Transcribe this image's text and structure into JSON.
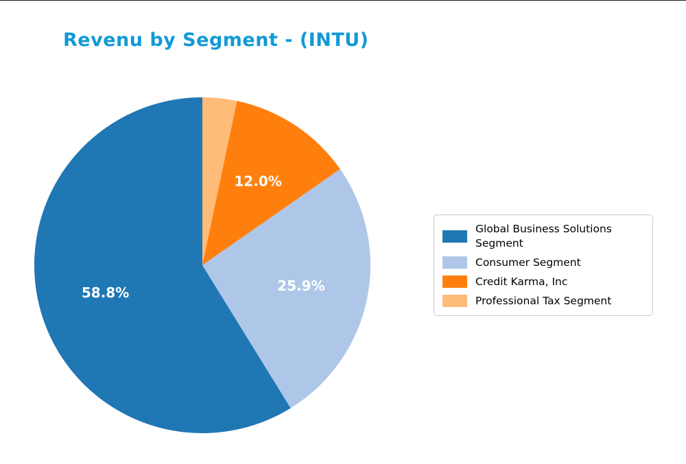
{
  "title_color": "#1199d6",
  "chart_data": {
    "type": "pie",
    "title": "Revenu by Segment - (INTU)",
    "start_angle_deg": 90,
    "direction": "counterclockwise",
    "legend_position": "right",
    "label_radius_fraction": 0.6,
    "slices": [
      {
        "label": "Global Business Solutions Segment",
        "value": 58.8,
        "pct_label": "58.8%",
        "color": "#1f77b4"
      },
      {
        "label": "Consumer Segment",
        "value": 25.9,
        "pct_label": "25.9%",
        "color": "#aec7e8"
      },
      {
        "label": "Credit Karma, Inc",
        "value": 12.0,
        "pct_label": "12.0%",
        "color": "#ff7f0e"
      },
      {
        "label": "Professional Tax Segment",
        "value": 3.3,
        "pct_label": "",
        "color": "#ffbb78"
      }
    ]
  }
}
